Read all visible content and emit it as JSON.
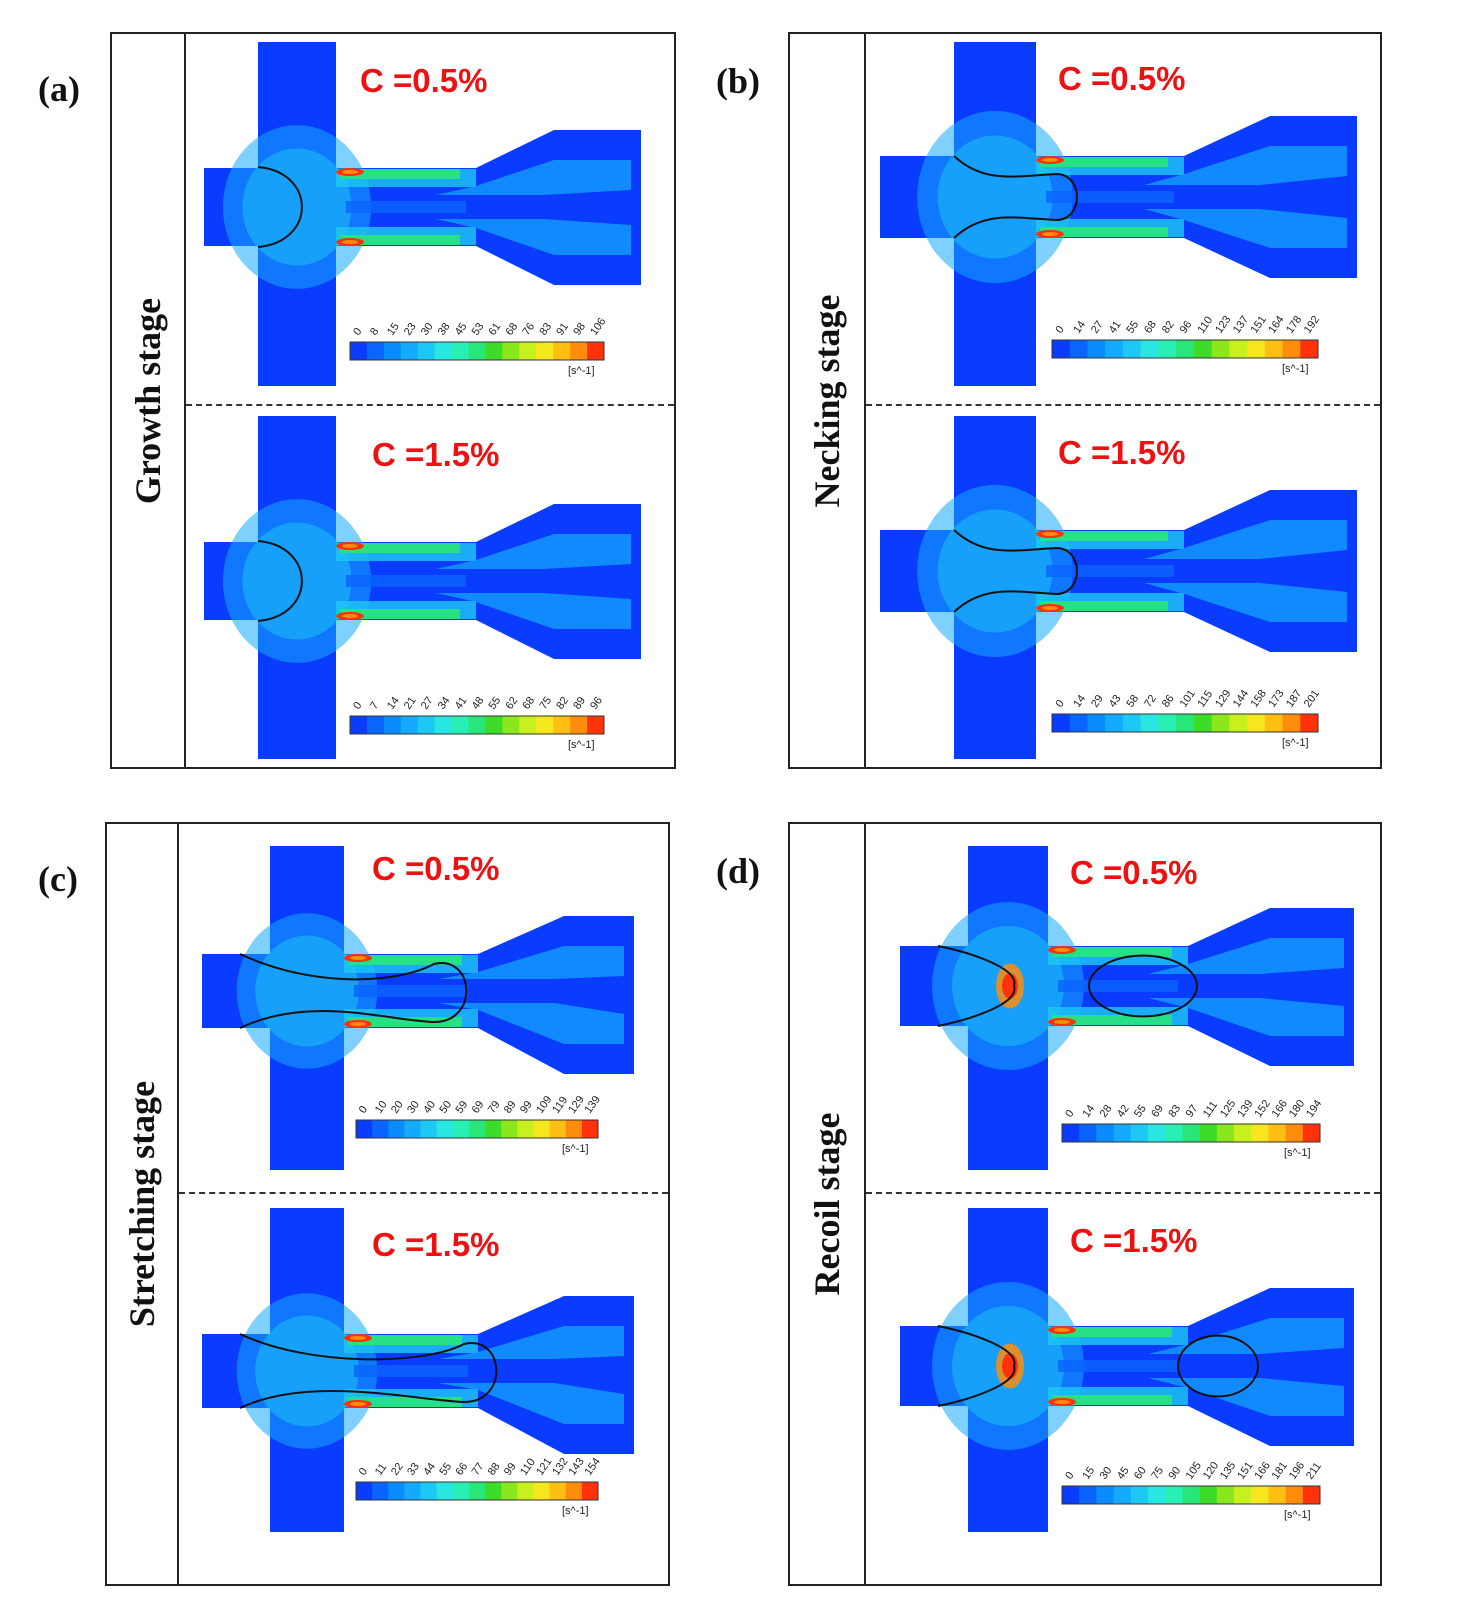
{
  "panels": [
    {
      "letter": "(a)",
      "stage": "Growth stage",
      "type": "growth",
      "sims": [
        {
          "conc": "C =0.5%",
          "ticks": [
            "0",
            "8",
            "15",
            "23",
            "30",
            "38",
            "45",
            "53",
            "61",
            "68",
            "76",
            "83",
            "91",
            "98",
            "106"
          ],
          "unit": "[s^-1]"
        },
        {
          "conc": "C =1.5%",
          "ticks": [
            "0",
            "7",
            "14",
            "21",
            "27",
            "34",
            "41",
            "48",
            "55",
            "62",
            "68",
            "75",
            "82",
            "89",
            "96"
          ],
          "unit": "[s^-1]"
        }
      ]
    },
    {
      "letter": "(b)",
      "stage": "Necking stage",
      "type": "necking",
      "sims": [
        {
          "conc": "C =0.5%",
          "ticks": [
            "0",
            "14",
            "27",
            "41",
            "55",
            "68",
            "82",
            "96",
            "110",
            "123",
            "137",
            "151",
            "164",
            "178",
            "192"
          ],
          "unit": "[s^-1]"
        },
        {
          "conc": "C =1.5%",
          "ticks": [
            "0",
            "14",
            "29",
            "43",
            "58",
            "72",
            "86",
            "101",
            "115",
            "129",
            "144",
            "158",
            "173",
            "187",
            "201"
          ],
          "unit": "[s^-1]"
        }
      ]
    },
    {
      "letter": "(c)",
      "stage": "Stretching stage",
      "type": "stretching",
      "sims": [
        {
          "conc": "C =0.5%",
          "ticks": [
            "0",
            "10",
            "20",
            "30",
            "40",
            "50",
            "59",
            "69",
            "79",
            "89",
            "99",
            "109",
            "119",
            "129",
            "139"
          ],
          "unit": "[s^-1]"
        },
        {
          "conc": "C =1.5%",
          "ticks": [
            "0",
            "11",
            "22",
            "33",
            "44",
            "55",
            "66",
            "77",
            "88",
            "99",
            "110",
            "121",
            "132",
            "143",
            "154"
          ],
          "unit": "[s^-1]"
        }
      ]
    },
    {
      "letter": "(d)",
      "stage": "Recoil stage",
      "type": "recoil",
      "sims": [
        {
          "conc": "C =0.5%",
          "ticks": [
            "0",
            "14",
            "28",
            "42",
            "55",
            "69",
            "83",
            "97",
            "111",
            "125",
            "139",
            "152",
            "166",
            "180",
            "194"
          ],
          "unit": "[s^-1]"
        },
        {
          "conc": "C =1.5%",
          "ticks": [
            "0",
            "15",
            "30",
            "45",
            "60",
            "75",
            "90",
            "105",
            "120",
            "135",
            "151",
            "166",
            "181",
            "196",
            "211"
          ],
          "unit": "[s^-1]"
        }
      ]
    }
  ],
  "colormap": [
    "#0a3cff",
    "#0a64ff",
    "#0a8cff",
    "#14aaff",
    "#1ec8f5",
    "#28e6e1",
    "#28f0b4",
    "#28e678",
    "#3cdc28",
    "#8ce61e",
    "#c8f01e",
    "#f5e61e",
    "#ffbe14",
    "#ff8c0a",
    "#ff320a"
  ]
}
